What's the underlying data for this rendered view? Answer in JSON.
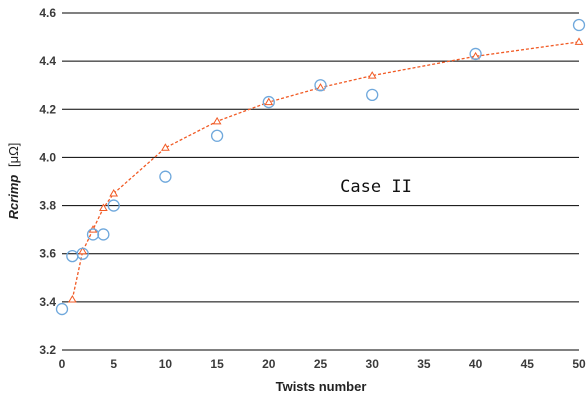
{
  "chart_data": {
    "type": "scatter",
    "xlabel": "Twists number",
    "ylabel_italic": "Rcrimp",
    "ylabel_unit": "[μΩ]",
    "annotation": "Case II",
    "xlim": [
      0,
      50
    ],
    "ylim": [
      3.2,
      4.6
    ],
    "xticks": [
      0,
      5,
      10,
      15,
      20,
      25,
      30,
      35,
      40,
      45,
      50
    ],
    "yticks": [
      3.2,
      3.4,
      3.6,
      3.8,
      4.0,
      4.2,
      4.4,
      4.6
    ],
    "ytick_labels": [
      "3.2",
      "3.4",
      "3.6",
      "3.8",
      "4.0",
      "4.2",
      "4.4",
      "4.6"
    ],
    "grid": "horizontal",
    "series": [
      {
        "marker": "circle",
        "color": "#6fa8dc",
        "x": [
          0,
          1,
          2,
          3,
          4,
          5,
          10,
          15,
          20,
          25,
          30,
          40,
          50
        ],
        "y": [
          3.37,
          3.59,
          3.6,
          3.68,
          3.68,
          3.8,
          3.92,
          4.09,
          4.23,
          4.3,
          4.26,
          4.43,
          4.55
        ]
      },
      {
        "marker": "triangle",
        "line": "dashed",
        "color": "#f15a24",
        "x": [
          1,
          2,
          3,
          4,
          5,
          10,
          15,
          20,
          25,
          30,
          40,
          50
        ],
        "y": [
          3.41,
          3.61,
          3.7,
          3.79,
          3.85,
          4.04,
          4.15,
          4.23,
          4.29,
          4.34,
          4.42,
          4.48
        ]
      }
    ]
  }
}
